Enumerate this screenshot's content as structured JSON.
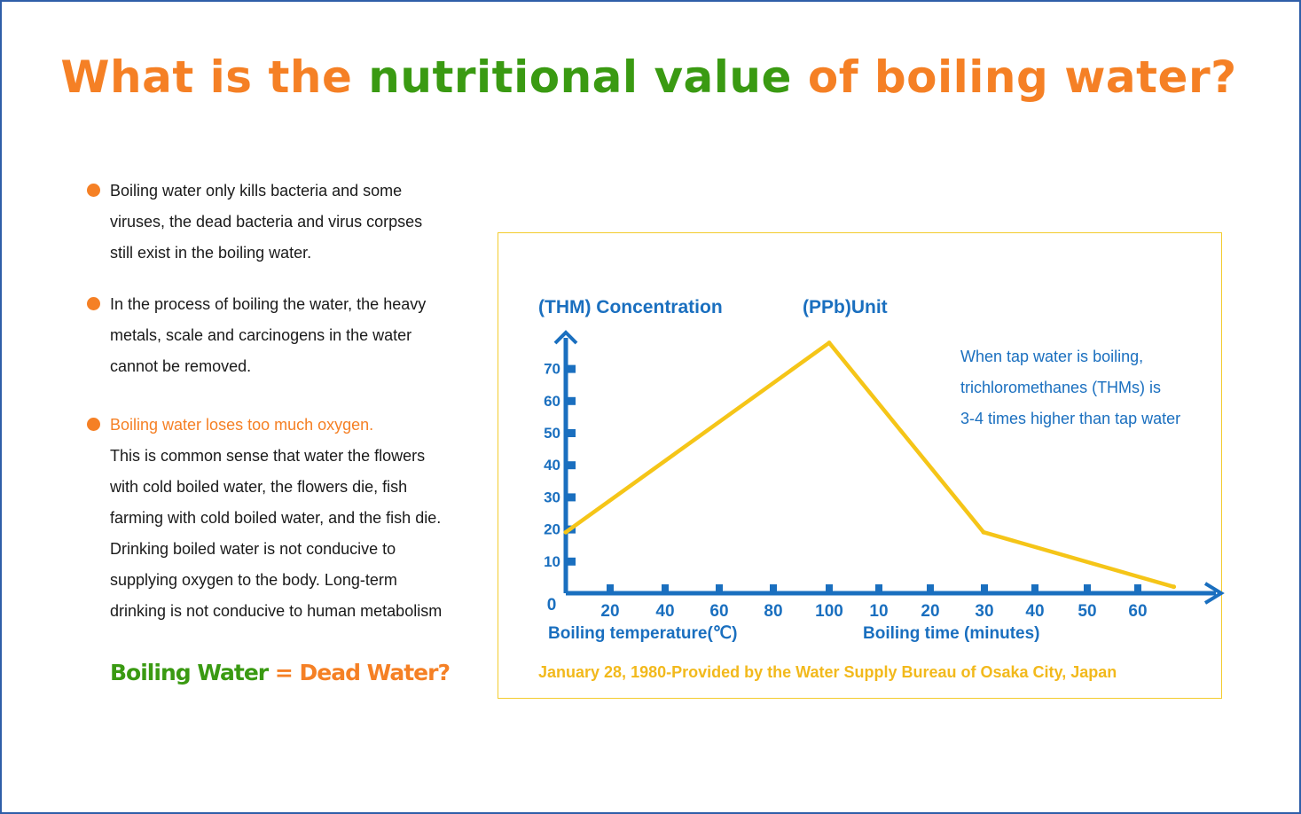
{
  "title": {
    "part1": "What is the ",
    "part2": "nutritional value",
    "part3": " of boiling water?"
  },
  "bullets": [
    {
      "lines": [
        "Boiling water only kills bacteria and some",
        "viruses, the dead bacteria and virus corpses",
        "still exist in the boiling water."
      ]
    },
    {
      "lines": [
        "In the process of boiling the water, the heavy",
        "metals, scale and carcinogens in the water",
        "cannot be removed."
      ]
    },
    {
      "highlight": "Boiling water loses too much oxygen.",
      "lines": [
        "This is common sense that water the flowers",
        "with cold boiled water, the flowers die, fish",
        "farming with cold boiled water, and the fish die.",
        "Drinking boiled water is not conducive to",
        "supplying oxygen to the body. Long-term",
        "drinking is not conducive to human metabolism"
      ]
    }
  ],
  "slogan": {
    "left": "Boiling Water",
    "eq": " = ",
    "right": "Dead Water?"
  },
  "colors": {
    "orange": "#f58025",
    "green": "#3a9a12",
    "blue": "#1a6fbf",
    "line": "#f5c518",
    "border_blue": "#2f5ea8"
  },
  "chart_data": {
    "type": "line",
    "ylabel": "(THM) Concentration",
    "unit": "(PPb)Unit",
    "annotation": [
      "When tap water is boiling,",
      "trichloromethanes (THMs) is",
      "3-4 times higher than tap water"
    ],
    "source": "January 28, 1980-Provided by the Water Supply Bureau of Osaka City, Japan",
    "ylim": [
      0,
      80
    ],
    "yticks": [
      10,
      20,
      30,
      40,
      50,
      60,
      70
    ],
    "ytick_labels": [
      "10",
      "20",
      "30",
      "40",
      "50",
      "60",
      "70"
    ],
    "origin_label": "0",
    "xticks": [
      "20",
      "40",
      "60",
      "80",
      "100",
      "10",
      "20",
      "30",
      "40",
      "50",
      "60"
    ],
    "xlabel_temperature": "Boiling temperature(℃)",
    "xlabel_time": "Boiling time (minutes)",
    "x_axis_segments": [
      {
        "label": "Boiling temperature(℃)",
        "unit": "℃",
        "range": [
          0,
          100
        ]
      },
      {
        "label": "Boiling time (minutes)",
        "unit": "minutes",
        "range": [
          0,
          60
        ]
      }
    ],
    "series": [
      {
        "points": [
          {
            "segment": "temperature",
            "x": 0,
            "y": 19
          },
          {
            "segment": "temperature",
            "x": 100,
            "y": 78
          },
          {
            "segment": "time",
            "x": 30,
            "y": 19
          },
          {
            "segment": "time",
            "x": 67,
            "y": 2
          }
        ]
      }
    ]
  }
}
